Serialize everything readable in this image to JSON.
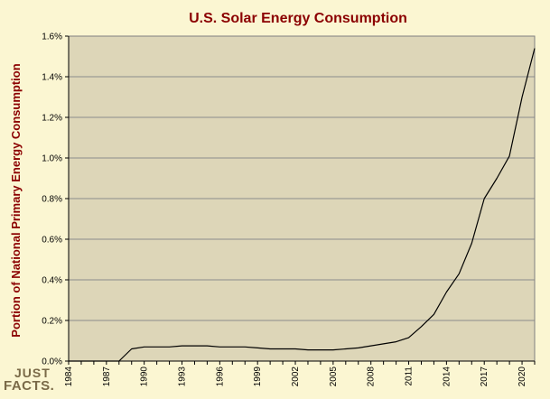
{
  "colors": {
    "background": "#fbf6d2",
    "plot_area": "#ddd6b8",
    "title": "#8b0000",
    "axis_label": "#8b0000",
    "gridline": "#8c8c8c",
    "line": "#000000",
    "logo_text": "#7a6a48"
  },
  "logo": {
    "line1": "JUST",
    "line2": "FACTS."
  },
  "chart_data": {
    "type": "line",
    "title": "U.S. Solar Energy Consumption",
    "xlabel": "",
    "ylabel": "Portion of National Primary Energy Consumption",
    "grid": true,
    "x_ticks": [
      "1984",
      "1987",
      "1990",
      "1993",
      "1996",
      "1999",
      "2002",
      "2005",
      "2008",
      "2011",
      "2014",
      "2017",
      "2020"
    ],
    "y_ticks": [
      "0.0%",
      "0.2%",
      "0.4%",
      "0.6%",
      "0.8%",
      "1.0%",
      "1.2%",
      "1.4%",
      "1.6%"
    ],
    "xlim": [
      1984,
      2021
    ],
    "ylim": [
      0,
      1.6
    ],
    "series": [
      {
        "x": [
          1984,
          1985,
          1986,
          1987,
          1988,
          1989,
          1990,
          1991,
          1992,
          1993,
          1994,
          1995,
          1996,
          1997,
          1998,
          1999,
          2000,
          2001,
          2002,
          2003,
          2004,
          2005,
          2006,
          2007,
          2008,
          2009,
          2010,
          2011,
          2012,
          2013,
          2014,
          2015,
          2016,
          2017,
          2018,
          2019,
          2020,
          2021
        ],
        "values": [
          0,
          0,
          0,
          0,
          0,
          0.06,
          0.07,
          0.07,
          0.07,
          0.075,
          0.075,
          0.075,
          0.07,
          0.07,
          0.07,
          0.065,
          0.06,
          0.06,
          0.06,
          0.055,
          0.055,
          0.055,
          0.06,
          0.065,
          0.075,
          0.085,
          0.095,
          0.115,
          0.17,
          0.23,
          0.34,
          0.43,
          0.58,
          0.8,
          0.9,
          1.01,
          1.3,
          1.54
        ]
      }
    ]
  }
}
